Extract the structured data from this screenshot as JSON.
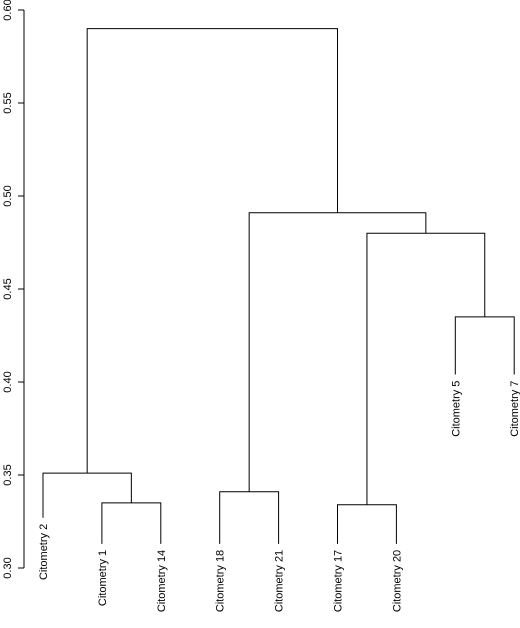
{
  "chart_data": {
    "type": "dendrogram",
    "title": "",
    "xlabel": "",
    "ylabel": "",
    "ylim": [
      0.3,
      0.6
    ],
    "yticks": [
      0.3,
      0.35,
      0.4,
      0.45,
      0.5,
      0.55,
      0.6
    ],
    "ytick_labels": [
      "0.30",
      "0.35",
      "0.40",
      "0.45",
      "0.50",
      "0.55",
      "0.60"
    ],
    "leaf_order": [
      "Citometry 2",
      "Citometry 1",
      "Citometry 14",
      "Citometry 18",
      "Citometry 21",
      "Citometry 17",
      "Citometry 20",
      "Citometry 5",
      "Citometry 7"
    ],
    "leaf_heights": {
      "Citometry 2": 0.327,
      "Citometry 1": 0.313,
      "Citometry 14": 0.313,
      "Citometry 18": 0.313,
      "Citometry 21": 0.313,
      "Citometry 17": 0.313,
      "Citometry 20": 0.313,
      "Citometry 5": 0.404,
      "Citometry 7": 0.404
    },
    "merges": [
      {
        "left": "Citometry 1",
        "right": "Citometry 14",
        "height": 0.335
      },
      {
        "left": "Citometry 18",
        "right": "Citometry 21",
        "height": 0.341
      },
      {
        "left": "Citometry 17",
        "right": "Citometry 20",
        "height": 0.334
      },
      {
        "left": "Citometry 5",
        "right": "Citometry 7",
        "height": 0.435
      },
      {
        "left": "Citometry 2",
        "right": 0,
        "height": 0.351
      },
      {
        "left": 2,
        "right": 3,
        "height": 0.48
      },
      {
        "left": 1,
        "right": 5,
        "height": 0.491
      },
      {
        "left": 4,
        "right": 6,
        "height": 0.59
      }
    ]
  }
}
